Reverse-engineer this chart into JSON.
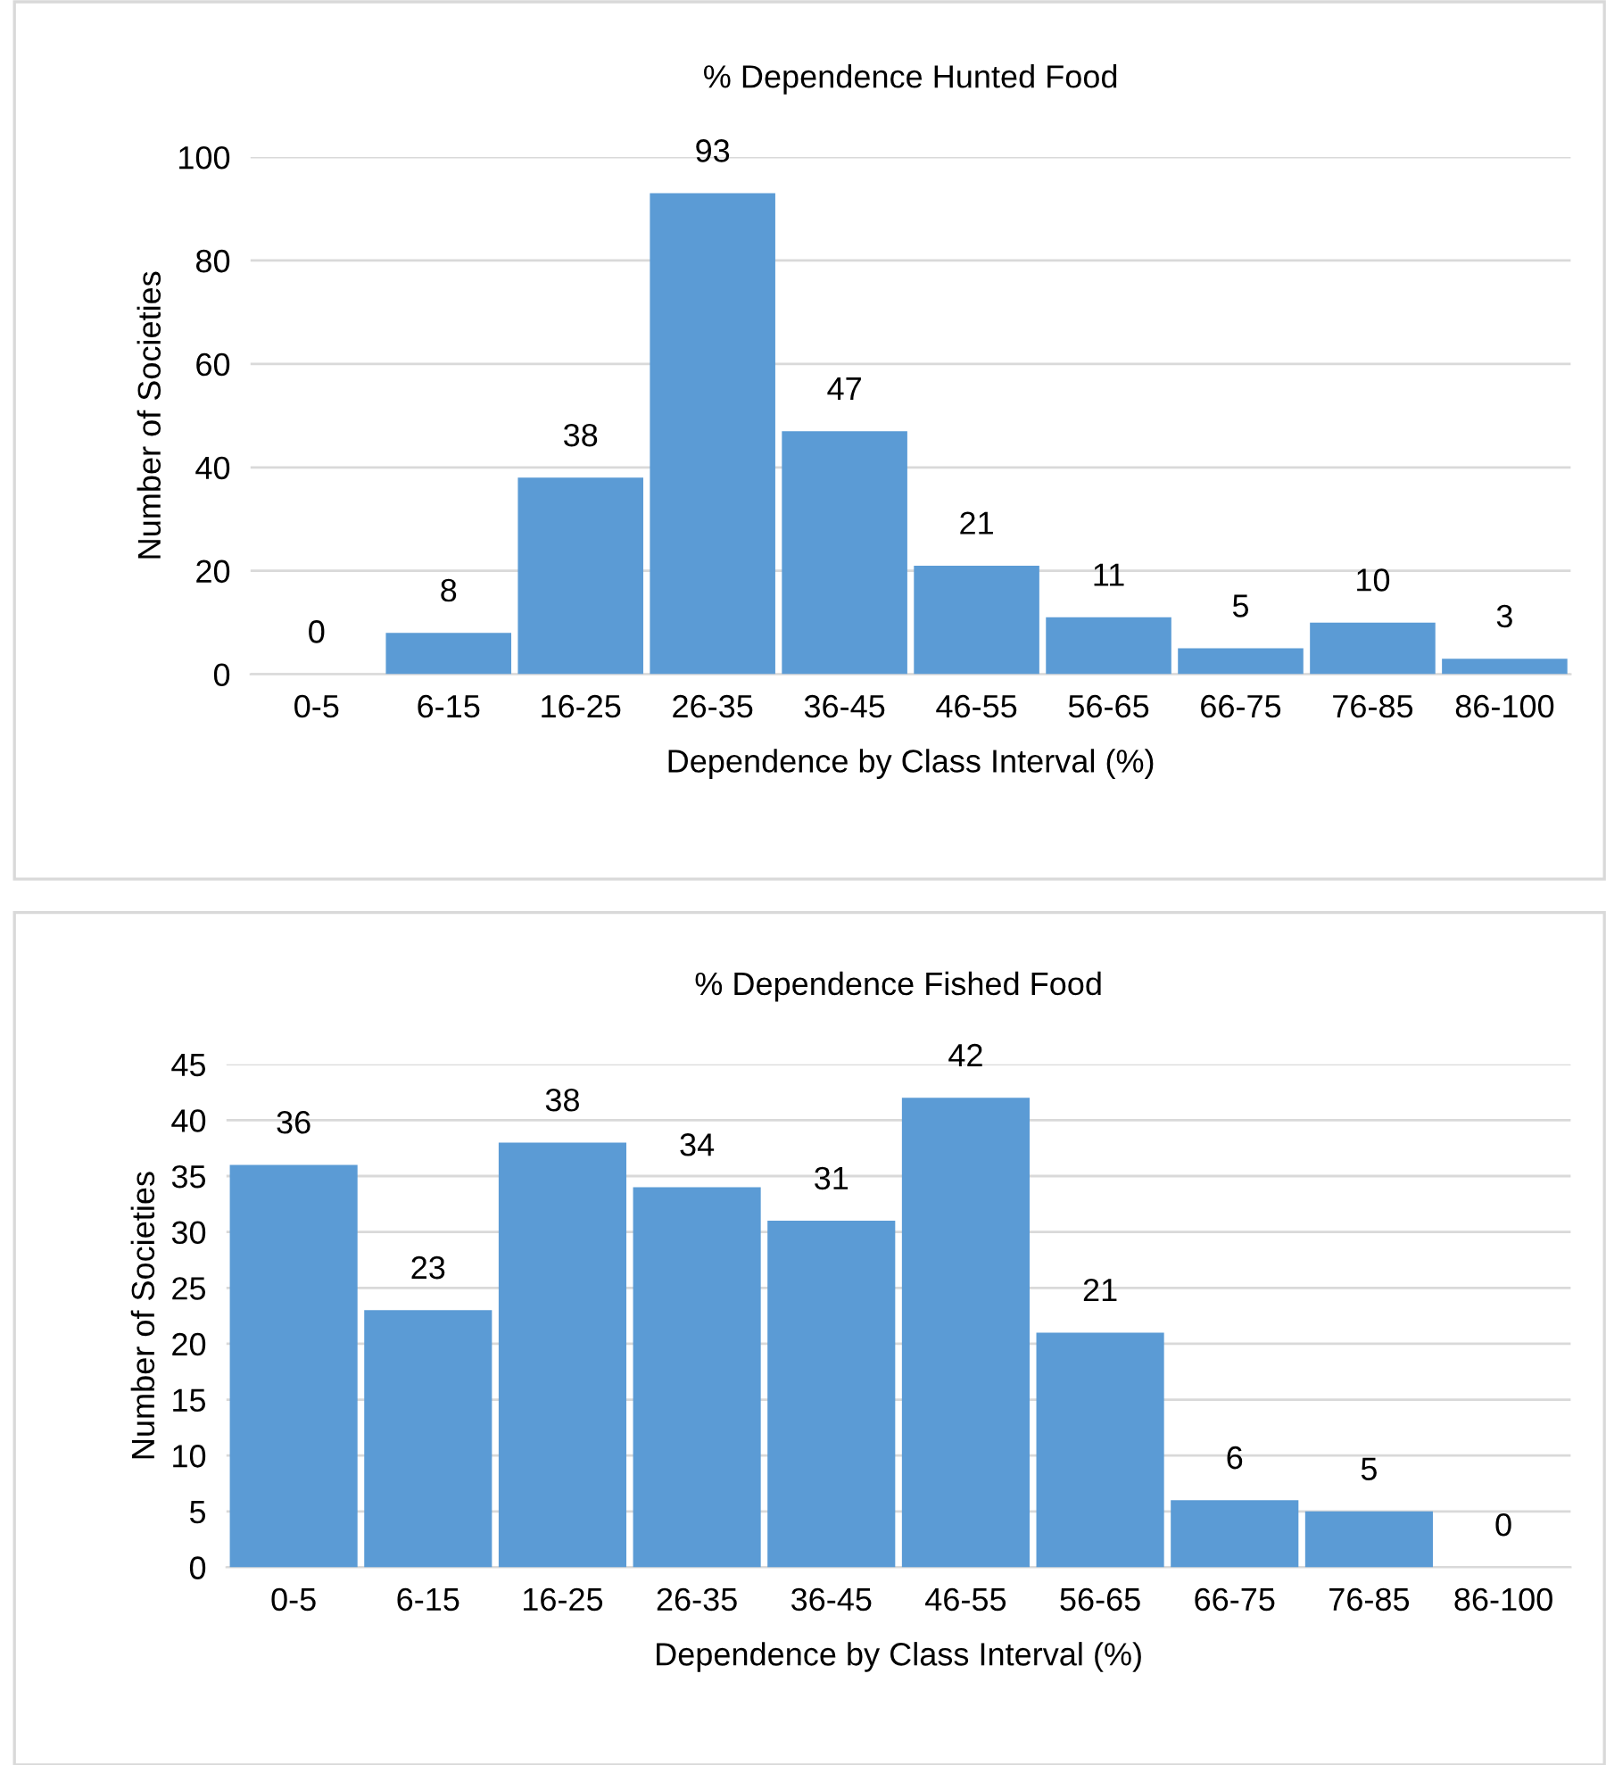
{
  "chart_data": [
    {
      "type": "bar",
      "title": "% Dependence Hunted Food",
      "xlabel": "Dependence by Class Interval (%)",
      "ylabel": "Number of Societies",
      "categories": [
        "0-5",
        "6-15",
        "16-25",
        "26-35",
        "36-45",
        "46-55",
        "56-65",
        "66-75",
        "76-85",
        "86-100"
      ],
      "values": [
        0,
        8,
        38,
        93,
        47,
        21,
        11,
        5,
        10,
        3
      ],
      "color": "#5b9bd5",
      "ylim": [
        0,
        100
      ],
      "yticks": [
        0,
        20,
        40,
        60,
        80,
        100
      ],
      "grid": "y",
      "data_labels": true
    },
    {
      "type": "bar",
      "title": "% Dependence Fished Food",
      "xlabel": "Dependence by Class Interval (%)",
      "ylabel": "Number of Societies",
      "categories": [
        "0-5",
        "6-15",
        "16-25",
        "26-35",
        "36-45",
        "46-55",
        "56-65",
        "66-75",
        "76-85",
        "86-100"
      ],
      "values": [
        36,
        23,
        38,
        34,
        31,
        42,
        21,
        6,
        5,
        0
      ],
      "color": "#5b9bd5",
      "ylim": [
        0,
        45
      ],
      "yticks": [
        0,
        5,
        10,
        15,
        20,
        25,
        30,
        35,
        40,
        45
      ],
      "grid": "y",
      "data_labels": true
    }
  ]
}
